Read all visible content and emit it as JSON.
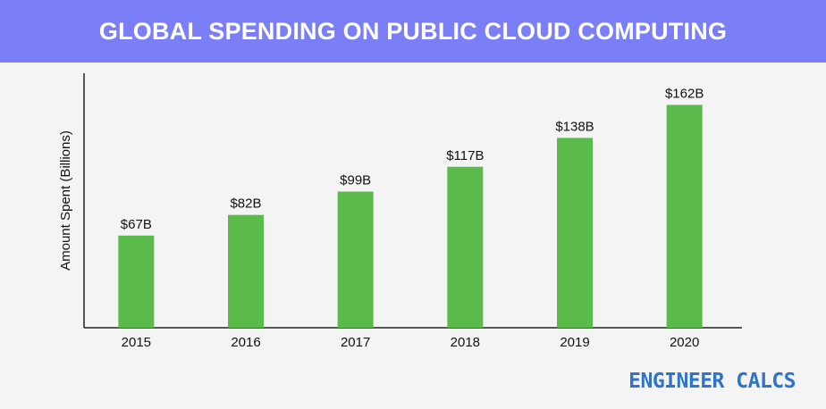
{
  "chart_data": {
    "type": "bar",
    "title": "GLOBAL SPENDING ON PUBLIC CLOUD COMPUTING",
    "xlabel": "",
    "ylabel": "Amount Spent (Billions)",
    "categories": [
      "2015",
      "2016",
      "2017",
      "2018",
      "2019",
      "2020"
    ],
    "values": [
      67,
      82,
      99,
      117,
      138,
      162
    ],
    "data_labels": [
      "$67B",
      "$82B",
      "$99B",
      "$117B",
      "$138B",
      "$162B"
    ],
    "ylim": [
      0,
      185
    ],
    "grid": false,
    "legend": "none",
    "bar_color": "#5bbb4a"
  },
  "brand": {
    "text": "ENGINEER CALCS",
    "color": "#2e74c9"
  },
  "colors": {
    "banner": "#7b7ff7",
    "background": "#f4f4f4"
  }
}
